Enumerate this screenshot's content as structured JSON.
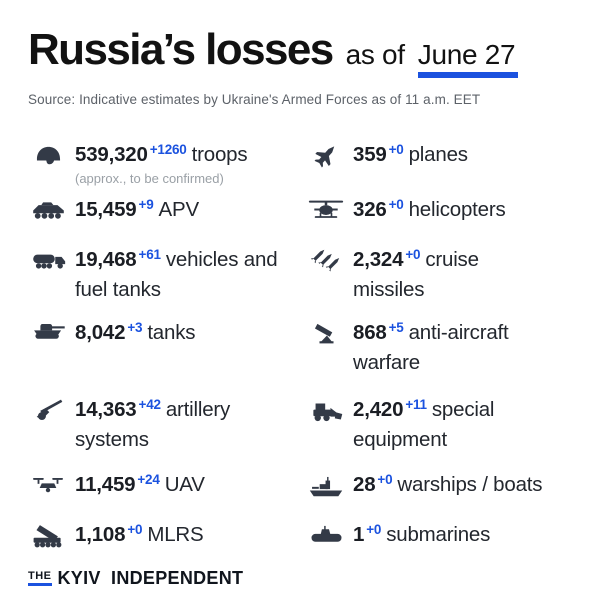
{
  "header": {
    "title": "Russia’s losses",
    "as_of": "as of",
    "date": "June 27",
    "source": "Source: Indicative estimates by Ukraine's Armed Forces as of 11 a.m. EET"
  },
  "colors": {
    "accent": "#1b52df",
    "icon": "#333a47",
    "title": "#121212",
    "text": "#23272e",
    "muted": "#9aa0a6",
    "source": "#5d6269"
  },
  "stats": {
    "left": [
      {
        "name": "troops",
        "icon": "helmet-icon",
        "value": "539,320",
        "delta": "+1260",
        "label": "troops",
        "note": "(approx., to be confirmed)"
      },
      {
        "name": "apv",
        "icon": "apc-icon",
        "value": "15,459",
        "delta": "+9",
        "label": "APV"
      },
      {
        "name": "vehicles-fuel-tanks",
        "icon": "fuel-truck-icon",
        "value": "19,468",
        "delta": "+61",
        "label": "vehicles and\nfuel tanks"
      },
      {
        "name": "tanks",
        "icon": "tank-icon",
        "value": "8,042",
        "delta": "+3",
        "label": "tanks"
      },
      {
        "name": "artillery-systems",
        "icon": "artillery-icon",
        "value": "14,363",
        "delta": "+42",
        "label": "artillery\nsystems"
      },
      {
        "name": "uav",
        "icon": "drone-icon",
        "value": "11,459",
        "delta": "+24",
        "label": "UAV"
      },
      {
        "name": "mlrs",
        "icon": "mlrs-icon",
        "value": "1,108",
        "delta": "+0",
        "label": "MLRS"
      }
    ],
    "right": [
      {
        "name": "planes",
        "icon": "jet-icon",
        "value": "359",
        "delta": "+0",
        "label": "planes"
      },
      {
        "name": "helicopters",
        "icon": "helicopter-icon",
        "value": "326",
        "delta": "+0",
        "label": "helicopters"
      },
      {
        "name": "cruise-missiles",
        "icon": "missiles-icon",
        "value": "2,324",
        "delta": "+0",
        "label": "cruise\nmissiles"
      },
      {
        "name": "anti-aircraft-warfare",
        "icon": "anti-aircraft-icon",
        "value": "868",
        "delta": "+5",
        "label": "anti-aircraft\nwarfare"
      },
      {
        "name": "special-equipment",
        "icon": "excavator-icon",
        "value": "2,420",
        "delta": "+11",
        "label": "special\nequipment"
      },
      {
        "name": "warships-boats",
        "icon": "warship-icon",
        "value": "28",
        "delta": "+0",
        "label": "warships / boats"
      },
      {
        "name": "submarines",
        "icon": "submarine-icon",
        "value": "1",
        "delta": "+0",
        "label": "submarines"
      }
    ]
  },
  "footer": {
    "the": "THE",
    "name": "KYIV INDEPENDENT"
  },
  "chart_data": {
    "type": "table",
    "title": "Russia’s losses as of June 27",
    "subtitle": "Source: Indicative estimates by Ukraine's Armed Forces as of 11 a.m. EET",
    "categories": [
      "troops",
      "APV",
      "vehicles and fuel tanks",
      "tanks",
      "artillery systems",
      "UAV",
      "MLRS",
      "planes",
      "helicopters",
      "cruise missiles",
      "anti-aircraft warfare",
      "special equipment",
      "warships / boats",
      "submarines"
    ],
    "values": [
      539320,
      15459,
      19468,
      8042,
      14363,
      11459,
      1108,
      359,
      326,
      2324,
      868,
      2420,
      28,
      1
    ],
    "deltas": [
      1260,
      9,
      61,
      3,
      42,
      24,
      0,
      0,
      0,
      0,
      5,
      11,
      0,
      0
    ],
    "notes": {
      "troops": "(approx., to be confirmed)"
    }
  }
}
